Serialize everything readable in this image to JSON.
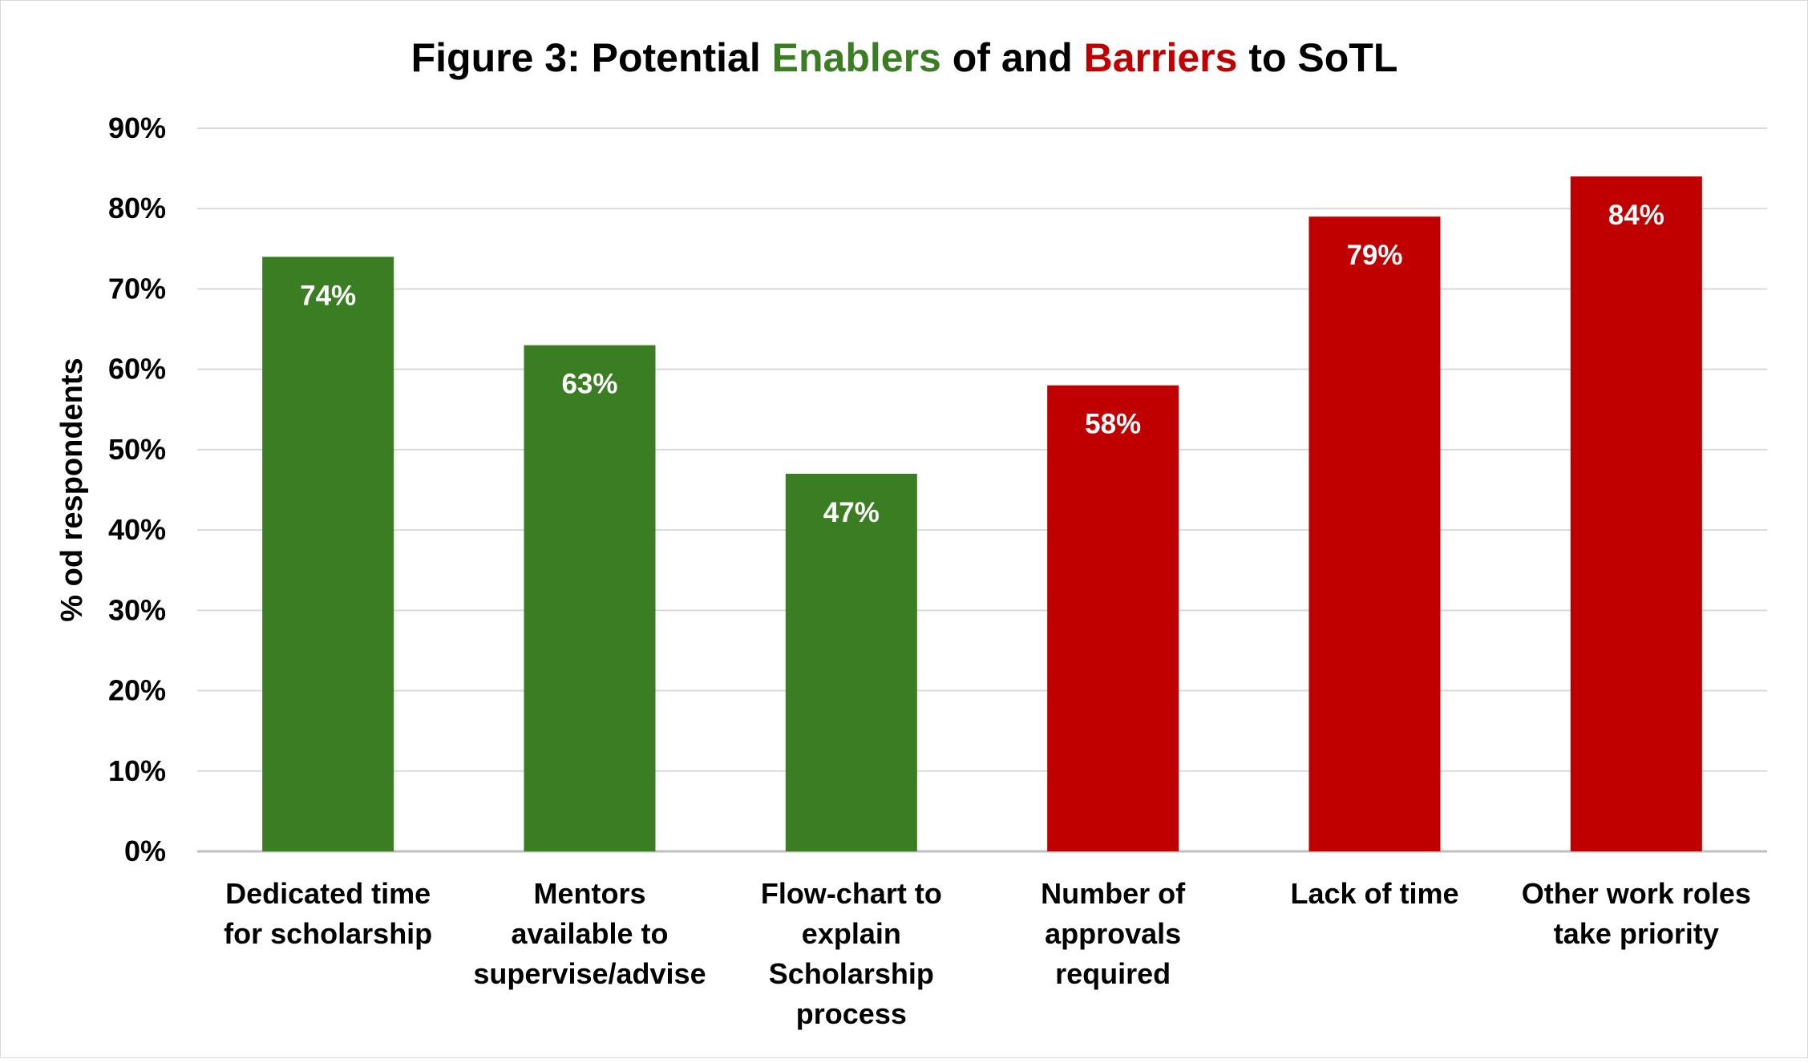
{
  "chart_data": {
    "type": "bar",
    "title": {
      "prefix": "Figure 3: Potential ",
      "highlight1": "Enablers",
      "middle": " of and ",
      "highlight2": "Barriers",
      "suffix": " to SoTL"
    },
    "ylabel": "% od respondents",
    "xlabel": "",
    "ylim": [
      0,
      90
    ],
    "yticks": [
      "0%",
      "10%",
      "20%",
      "30%",
      "40%",
      "50%",
      "60%",
      "70%",
      "80%",
      "90%"
    ],
    "grid": true,
    "categories": [
      [
        "Dedicated time",
        "for scholarship"
      ],
      [
        "Mentors",
        "available to",
        "supervise/advise"
      ],
      [
        "Flow-chart to",
        "explain",
        "Scholarship",
        "process"
      ],
      [
        "Number of",
        "approvals",
        "required"
      ],
      [
        "Lack of time"
      ],
      [
        "Other work roles",
        "take priority"
      ]
    ],
    "values": [
      74,
      63,
      47,
      58,
      79,
      84
    ],
    "data_labels": [
      "74%",
      "63%",
      "47%",
      "58%",
      "79%",
      "84%"
    ],
    "bar_groups": [
      "enabler",
      "enabler",
      "enabler",
      "barrier",
      "barrier",
      "barrier"
    ]
  },
  "colors": {
    "enabler": "#3b7d23",
    "barrier": "#c00000",
    "grid": "#d9d9d9",
    "axis": "#bfbfbf"
  }
}
